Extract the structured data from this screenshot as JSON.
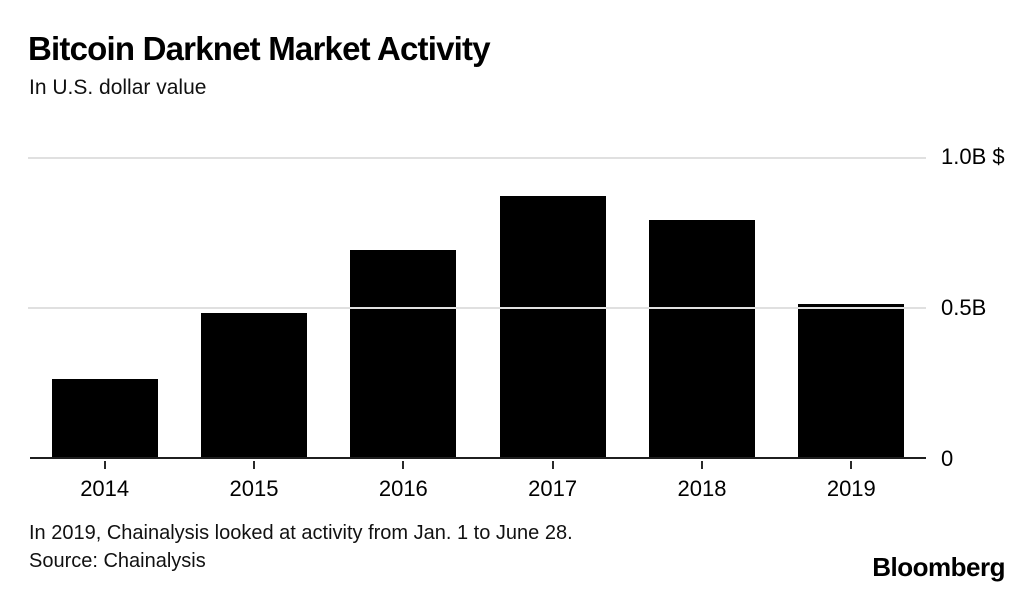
{
  "header": {
    "title": "Bitcoin Darknet Market Activity",
    "subtitle": "In U.S. dollar value"
  },
  "chart_data": {
    "type": "bar",
    "title": "Bitcoin Darknet Market Activity",
    "subtitle": "In U.S. dollar value",
    "categories": [
      "2014",
      "2015",
      "2016",
      "2017",
      "2018",
      "2019"
    ],
    "values": [
      0.26,
      0.48,
      0.69,
      0.87,
      0.79,
      0.51
    ],
    "unit": "billion USD",
    "xlabel": "",
    "ylabel": "",
    "ylim": [
      0,
      1.0
    ],
    "yticks": [
      {
        "value": 1.0,
        "label": "1.0B $"
      },
      {
        "value": 0.5,
        "label": "0.5B"
      },
      {
        "value": 0,
        "label": "0"
      }
    ],
    "grid": "horizontal-only",
    "legend": "none",
    "bar_color": "#000000"
  },
  "footer": {
    "note": "In 2019, Chainalysis looked at activity from Jan. 1 to June 28.",
    "source": "Source: Chainalysis",
    "brand": "Bloomberg"
  },
  "colors": {
    "background": "#ffffff",
    "bar": "#000000",
    "gridline": "#e0e0e0",
    "baseline": "#1f1f1f",
    "text": "#000000"
  }
}
